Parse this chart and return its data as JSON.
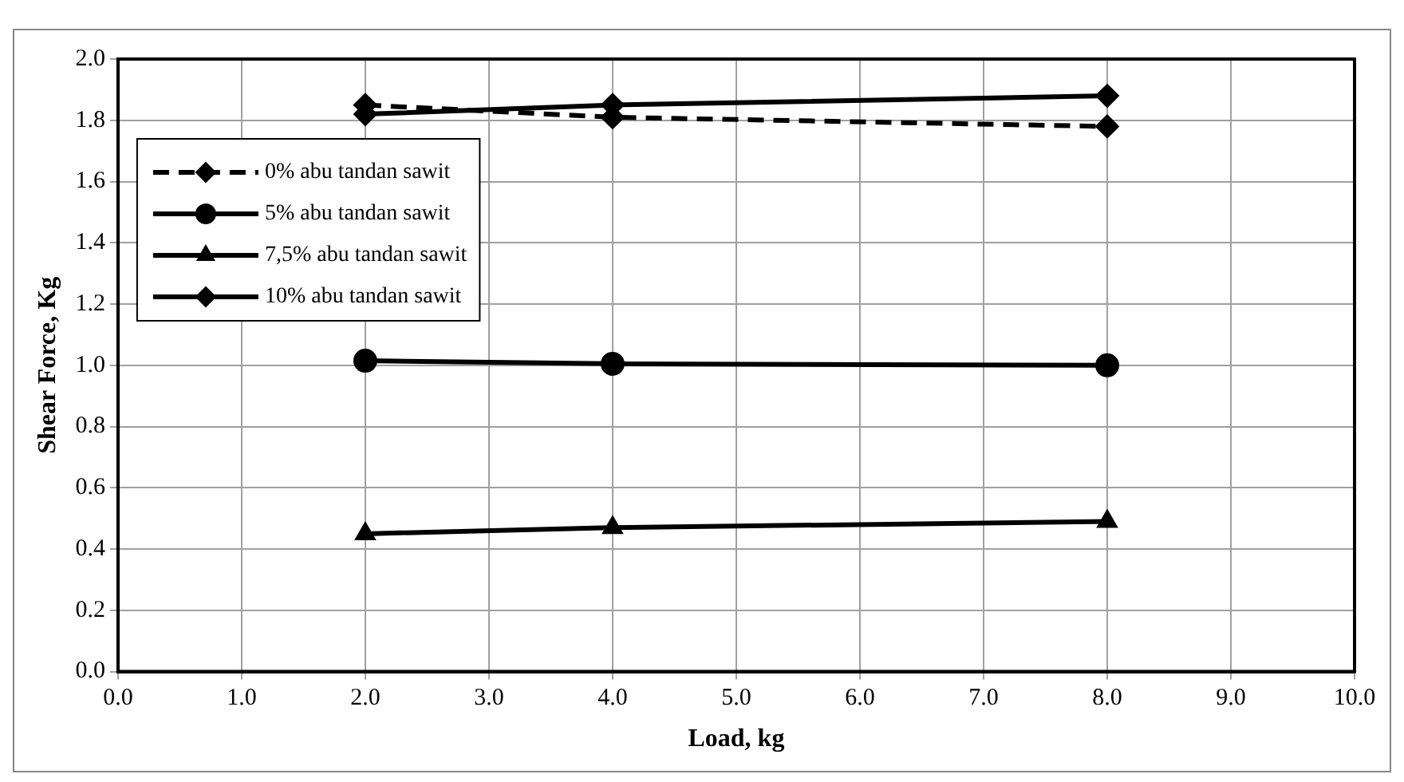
{
  "chart_data": {
    "type": "line",
    "xlabel": "Load, kg",
    "ylabel": "Shear Force, Kg",
    "x": [
      2,
      4,
      8
    ],
    "series": [
      {
        "name": "0% abu tandan sawit",
        "color": "#000000",
        "marker": "diamond",
        "line_style": "dashed",
        "values": [
          1.85,
          1.81,
          1.78
        ]
      },
      {
        "name": "5% abu tandan sawit",
        "color": "#000000",
        "marker": "circle",
        "line_style": "solid",
        "values": [
          1.015,
          1.005,
          1.0
        ]
      },
      {
        "name": "7,5% abu tandan sawit",
        "color": "#000000",
        "marker": "triangle",
        "line_style": "solid",
        "values": [
          0.45,
          0.47,
          0.49
        ]
      },
      {
        "name": "10% abu tandan sawit",
        "color": "#000000",
        "marker": "diamond",
        "line_style": "solid",
        "values": [
          1.82,
          1.85,
          1.88
        ]
      }
    ],
    "xlim": [
      0,
      10
    ],
    "xticks": [
      {
        "value": 0,
        "label": "0.0"
      },
      {
        "value": 1,
        "label": "1.0"
      },
      {
        "value": 2,
        "label": "2.0"
      },
      {
        "value": 3,
        "label": "3.0"
      },
      {
        "value": 4,
        "label": "4.0"
      },
      {
        "value": 5,
        "label": "5.0"
      },
      {
        "value": 6,
        "label": "6.0"
      },
      {
        "value": 7,
        "label": "7.0"
      },
      {
        "value": 8,
        "label": "8.0"
      },
      {
        "value": 9,
        "label": "9.0"
      },
      {
        "value": 10,
        "label": "10.0"
      }
    ],
    "ylim": [
      0,
      2
    ],
    "yticks": [
      {
        "value": 0,
        "label": "0.0"
      },
      {
        "value": 0.2,
        "label": "0.2"
      },
      {
        "value": 0.4,
        "label": "0.4"
      },
      {
        "value": 0.6,
        "label": "0.6"
      },
      {
        "value": 0.8,
        "label": "0.8"
      },
      {
        "value": 1,
        "label": "1.0"
      },
      {
        "value": 1.2,
        "label": "1.2"
      },
      {
        "value": 1.4,
        "label": "1.4"
      },
      {
        "value": 1.6,
        "label": "1.6"
      },
      {
        "value": 1.8,
        "label": "1.8"
      },
      {
        "value": 2,
        "label": "2.0"
      }
    ],
    "grid": true,
    "legend": "top left"
  }
}
